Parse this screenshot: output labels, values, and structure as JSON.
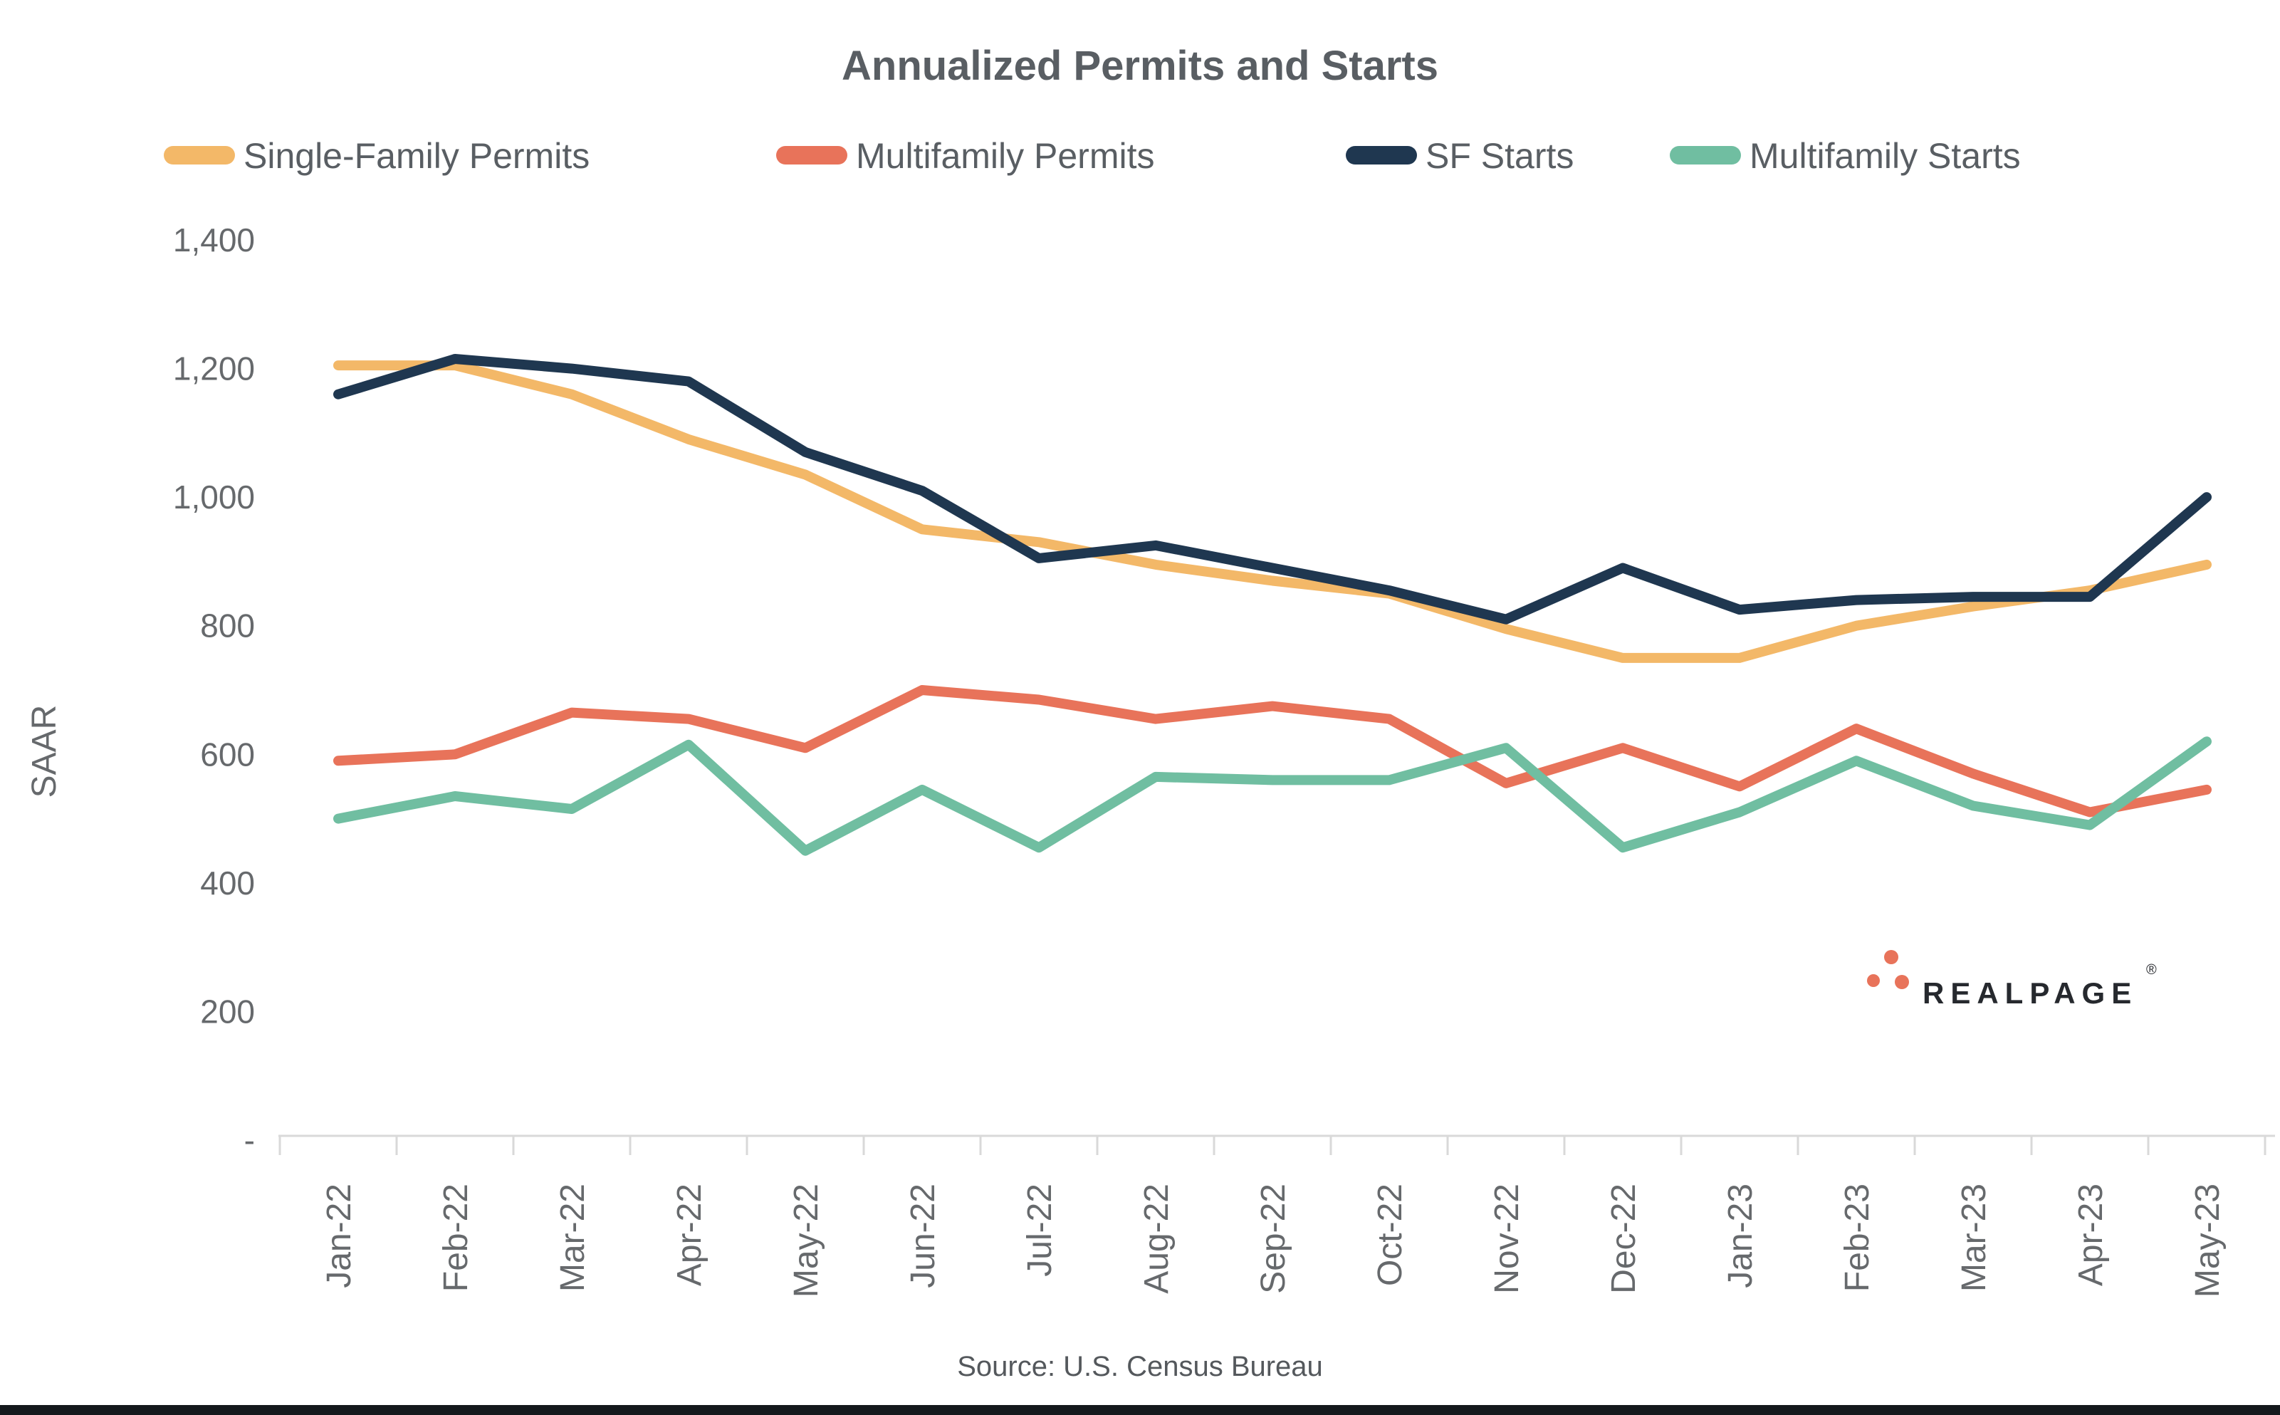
{
  "title": "Annualized Permits and Starts",
  "source_note": "Source: U.S. Census Bureau",
  "logo": {
    "text": "REALPAGE",
    "registered_mark": "®"
  },
  "colors": {
    "single_family_permits": "#F3B868",
    "multifamily_permits": "#E8735A",
    "sf_starts": "#1F3750",
    "multifamily_starts": "#70BEA1",
    "title_text": "#595E63",
    "tick_text": "#66696C",
    "source_text": "#54585C",
    "axis_line": "#D9D9D9",
    "logo_text": "#26292E",
    "logo_dots": "#E8735A",
    "bottom_bar": "#14181C"
  },
  "chart_data": {
    "type": "line",
    "title": "Annualized Permits and Starts",
    "ylabel": "SAAR",
    "xlabel": "",
    "ylim": [
      0,
      1400
    ],
    "grid": false,
    "legend_position": "top",
    "categories": [
      "Jan-22",
      "Feb-22",
      "Mar-22",
      "Apr-22",
      "May-22",
      "Jun-22",
      "Jul-22",
      "Aug-22",
      "Sep-22",
      "Oct-22",
      "Nov-22",
      "Dec-22",
      "Jan-23",
      "Feb-23",
      "Mar-23",
      "Apr-23",
      "May-23"
    ],
    "y_ticks": [
      {
        "label": "1,400",
        "value": 1400
      },
      {
        "label": "1,200",
        "value": 1200
      },
      {
        "label": "1,000",
        "value": 1000
      },
      {
        "label": "800",
        "value": 800
      },
      {
        "label": "600",
        "value": 600
      },
      {
        "label": "400",
        "value": 400
      },
      {
        "label": "200",
        "value": 200
      },
      {
        "label": "-",
        "value": 0
      }
    ],
    "series": [
      {
        "name": "Single-Family Permits",
        "color": "#F3B868",
        "values": [
          1205,
          1205,
          1160,
          1090,
          1035,
          950,
          930,
          895,
          870,
          850,
          795,
          750,
          750,
          800,
          830,
          855,
          895
        ]
      },
      {
        "name": "Multifamily Permits",
        "color": "#E8735A",
        "values": [
          590,
          600,
          665,
          655,
          610,
          700,
          685,
          655,
          675,
          655,
          555,
          610,
          550,
          640,
          570,
          510,
          545
        ]
      },
      {
        "name": "SF Starts",
        "color": "#1F3750",
        "values": [
          1160,
          1215,
          1200,
          1180,
          1070,
          1010,
          905,
          925,
          890,
          855,
          810,
          890,
          825,
          840,
          845,
          845,
          1000
        ]
      },
      {
        "name": "Multifamily Starts",
        "color": "#70BEA1",
        "values": [
          500,
          535,
          515,
          615,
          450,
          545,
          455,
          565,
          560,
          560,
          610,
          455,
          510,
          590,
          520,
          490,
          620
        ]
      }
    ]
  }
}
